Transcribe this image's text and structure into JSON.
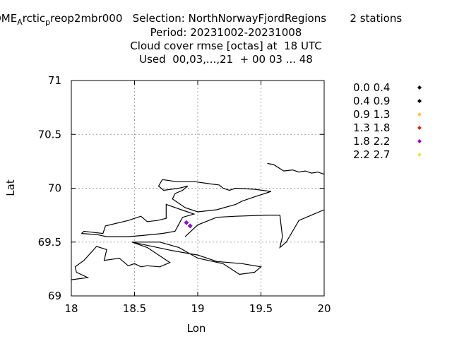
{
  "header": {
    "title_prefix": "OME",
    "title_sub1": "A",
    "title_mid": "rctic",
    "title_sub2": "p",
    "title_rest": "reop2mbr000   Selection: NorthNorwayFjordRegions       2 stations",
    "period": "Period: 20231002-20231008",
    "metric": "Cloud cover rmse [octas] at  18 UTC",
    "used": "Used  00,03,...,21  + 00 03 ... 48"
  },
  "chart_data": {
    "type": "scatter",
    "xlabel": "Lon",
    "ylabel": "Lat",
    "xlim": [
      18,
      20
    ],
    "ylim": [
      69,
      71
    ],
    "x_ticks": [
      "18",
      "18.5",
      "19",
      "19.5",
      "20"
    ],
    "y_ticks": [
      "69",
      "69.5",
      "70",
      "70.5",
      "71"
    ],
    "grid": true,
    "legend_position": "right",
    "legend": [
      {
        "label": "0.0 0.4",
        "color": "#000000"
      },
      {
        "label": "0.4 0.9",
        "color": "#000000"
      },
      {
        "label": "0.9 1.3",
        "color": "#f2c94c"
      },
      {
        "label": "1.3 1.8",
        "color": "#d0301f"
      },
      {
        "label": "1.8 2.2",
        "color": "#8a12c9"
      },
      {
        "label": "2.2 2.7",
        "color": "#f2e14c"
      }
    ],
    "points": [
      {
        "lon": 18.91,
        "lat": 69.68,
        "color": "#8a12c9"
      },
      {
        "lon": 18.94,
        "lat": 69.65,
        "color": "#8a12c9"
      }
    ],
    "coastline": [
      [
        [
          18.0,
          69.15
        ],
        [
          18.13,
          69.17
        ],
        [
          18.04,
          69.22
        ],
        [
          18.03,
          69.27
        ],
        [
          18.1,
          69.33
        ],
        [
          18.2,
          69.46
        ],
        [
          18.28,
          69.43
        ],
        [
          18.26,
          69.33
        ],
        [
          18.38,
          69.35
        ],
        [
          18.45,
          69.28
        ],
        [
          18.5,
          69.3
        ],
        [
          18.55,
          69.27
        ],
        [
          18.6,
          69.28
        ],
        [
          18.7,
          69.27
        ],
        [
          18.78,
          69.31
        ],
        [
          18.6,
          69.45
        ],
        [
          18.48,
          69.5
        ]
      ],
      [
        [
          18.08,
          69.58
        ],
        [
          18.1,
          69.6
        ],
        [
          18.25,
          69.58
        ],
        [
          18.27,
          69.65
        ],
        [
          18.45,
          69.7
        ],
        [
          18.55,
          69.74
        ],
        [
          18.6,
          69.69
        ],
        [
          18.68,
          69.7
        ],
        [
          18.75,
          69.72
        ],
        [
          18.75,
          69.85
        ],
        [
          18.87,
          69.8
        ],
        [
          18.97,
          69.76
        ],
        [
          18.88,
          69.73
        ],
        [
          18.82,
          69.6
        ],
        [
          18.72,
          69.58
        ],
        [
          18.55,
          69.56
        ],
        [
          18.45,
          69.55
        ],
        [
          18.28,
          69.55
        ],
        [
          18.2,
          69.57
        ],
        [
          18.08,
          69.58
        ]
      ],
      [
        [
          18.48,
          69.5
        ],
        [
          18.8,
          69.42
        ],
        [
          19.0,
          69.38
        ],
        [
          19.15,
          69.32
        ],
        [
          19.35,
          69.3
        ],
        [
          19.5,
          69.27
        ],
        [
          19.45,
          69.22
        ],
        [
          19.33,
          69.2
        ],
        [
          19.2,
          69.3
        ],
        [
          19.0,
          69.35
        ],
        [
          18.85,
          69.45
        ],
        [
          18.7,
          69.5
        ],
        [
          18.48,
          69.5
        ]
      ],
      [
        [
          18.72,
          70.08
        ],
        [
          18.78,
          70.07
        ],
        [
          18.83,
          70.06
        ],
        [
          18.98,
          70.06
        ],
        [
          19.1,
          70.04
        ],
        [
          19.17,
          70.03
        ],
        [
          19.2,
          70.0
        ],
        [
          19.25,
          69.98
        ],
        [
          19.3,
          70.0
        ],
        [
          19.45,
          69.99
        ],
        [
          19.58,
          69.97
        ],
        [
          19.45,
          69.92
        ],
        [
          19.35,
          69.88
        ],
        [
          19.3,
          69.85
        ],
        [
          19.15,
          69.8
        ],
        [
          19.0,
          69.78
        ],
        [
          18.9,
          69.82
        ],
        [
          18.8,
          69.9
        ],
        [
          18.82,
          69.95
        ],
        [
          18.88,
          69.98
        ],
        [
          18.92,
          70.02
        ],
        [
          18.85,
          70.0
        ],
        [
          18.73,
          69.98
        ],
        [
          18.69,
          70.02
        ],
        [
          18.72,
          70.08
        ]
      ],
      [
        [
          18.9,
          69.55
        ],
        [
          19.0,
          69.66
        ],
        [
          19.15,
          69.73
        ],
        [
          19.3,
          69.74
        ],
        [
          19.55,
          69.75
        ],
        [
          19.65,
          69.75
        ],
        [
          19.67,
          69.55
        ],
        [
          19.65,
          69.45
        ],
        [
          19.7,
          69.5
        ],
        [
          19.75,
          69.6
        ],
        [
          19.8,
          69.7
        ],
        [
          19.9,
          69.75
        ],
        [
          20.0,
          69.8
        ]
      ],
      [
        [
          19.55,
          70.23
        ],
        [
          19.6,
          70.22
        ],
        [
          19.68,
          70.16
        ],
        [
          19.75,
          70.17
        ],
        [
          19.8,
          70.15
        ],
        [
          19.85,
          70.16
        ],
        [
          19.9,
          70.14
        ],
        [
          19.95,
          70.15
        ],
        [
          20.0,
          70.13
        ]
      ]
    ]
  }
}
